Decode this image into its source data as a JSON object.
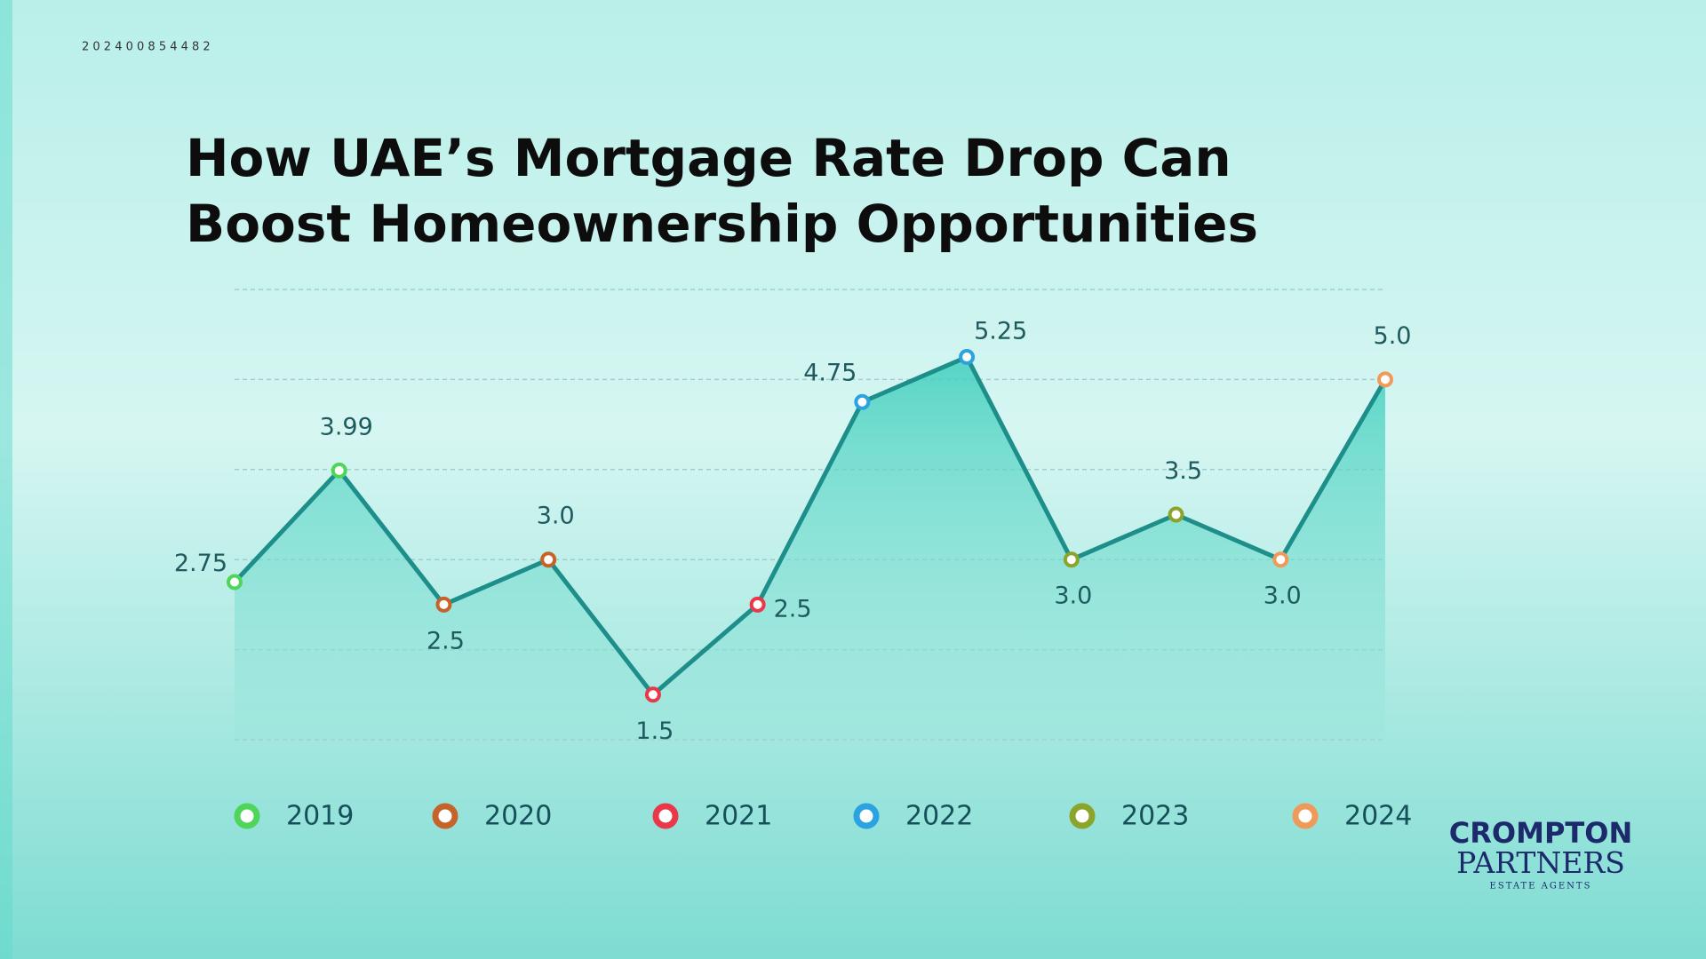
{
  "code": "2 0 2 4 0 0 8 5 4 4 8 2",
  "logo": {
    "name": "CROMPTON",
    "sub": "PARTNERS",
    "tagline": "ESTATE AGENTS"
  },
  "chart_data": {
    "type": "line",
    "title": [
      "How UAE’s Mortgage Rate Drop Can",
      "Boost Homeownership Opportunities"
    ],
    "categories": [
      null,
      null,
      null,
      null,
      null,
      null,
      null,
      null,
      null,
      null,
      null,
      null
    ],
    "values": [
      2.75,
      3.99,
      2.5,
      3.0,
      1.5,
      2.5,
      4.75,
      5.25,
      3.0,
      3.5,
      3.0,
      5.0
    ],
    "value_labels": [
      "2.75",
      "3.99",
      "2.5",
      "3.0",
      "1.5",
      "2.5",
      "4.75",
      "5.25",
      "3.0",
      "3.5",
      "3.0",
      "5.0"
    ],
    "color": "#1e8e8a",
    "point_colors": [
      "#4fd65a",
      "#4fd65a",
      "#c4642a",
      "#c4642a",
      "#e8384a",
      "#e8384a",
      "#2aa3e0",
      "#2aa3e0",
      "#8aa52a",
      "#8aa52a",
      "#f09a5a",
      "#f09a5a"
    ],
    "legend": [
      {
        "name": "2019",
        "color": "#4fd65a"
      },
      {
        "name": "2020",
        "color": "#c4642a"
      },
      {
        "name": "2021",
        "color": "#e8384a"
      },
      {
        "name": "2022",
        "color": "#2aa3e0"
      },
      {
        "name": "2023",
        "color": "#8aa52a"
      },
      {
        "name": "2024",
        "color": "#f09a5a"
      }
    ],
    "ylim": [
      1,
      6
    ],
    "yticks": [
      1,
      2,
      3,
      4,
      5,
      6
    ],
    "grid": true
  }
}
